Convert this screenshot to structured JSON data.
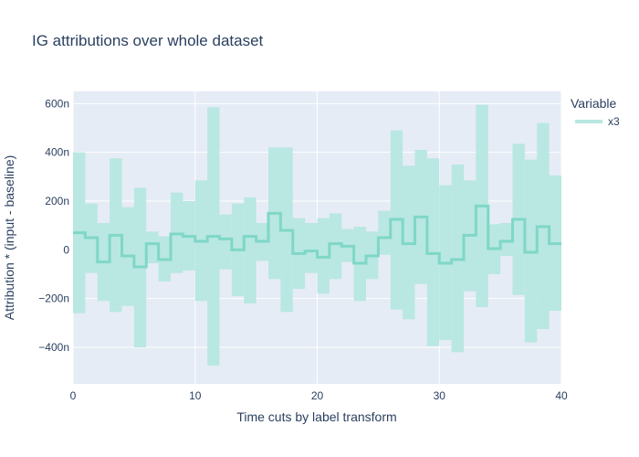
{
  "chart_data": {
    "type": "line",
    "title": "IG attributions over whole dataset",
    "xlabel": "Time cuts by label transform",
    "ylabel": "Attribution * (input - baseline)",
    "xlim": [
      0,
      40
    ],
    "ylim": [
      -550,
      650
    ],
    "x_ticks": [
      {
        "value": 0,
        "label": "0"
      },
      {
        "value": 10,
        "label": "10"
      },
      {
        "value": 20,
        "label": "20"
      },
      {
        "value": 30,
        "label": "30"
      },
      {
        "value": 40,
        "label": "40"
      }
    ],
    "y_ticks": [
      {
        "value": -400,
        "label": "−400n"
      },
      {
        "value": -200,
        "label": "−200n"
      },
      {
        "value": 0,
        "label": "0"
      },
      {
        "value": 200,
        "label": "200n"
      },
      {
        "value": 400,
        "label": "400n"
      },
      {
        "value": 600,
        "label": "600n"
      }
    ],
    "y_unit_note": "values in nano units (n)",
    "legend": {
      "title": "Variable",
      "placement": "top-right",
      "entries": [
        "x3"
      ]
    },
    "grid": true,
    "series": [
      {
        "name": "x3",
        "color": "#2ec4a6",
        "step": "hv",
        "x": [
          0,
          1,
          2,
          3,
          4,
          5,
          6,
          7,
          8,
          9,
          10,
          11,
          12,
          13,
          14,
          15,
          16,
          17,
          18,
          19,
          20,
          21,
          22,
          23,
          24,
          25,
          26,
          27,
          28,
          29,
          30,
          31,
          32,
          33,
          34,
          35,
          36,
          37,
          38,
          39
        ],
        "mean": [
          70,
          50,
          -50,
          60,
          -25,
          -70,
          25,
          -40,
          65,
          55,
          35,
          55,
          45,
          0,
          55,
          35,
          150,
          80,
          -15,
          -5,
          -30,
          25,
          15,
          -55,
          -25,
          50,
          125,
          25,
          135,
          -15,
          -55,
          -40,
          60,
          180,
          5,
          35,
          125,
          -10,
          95,
          25
        ],
        "upper": [
          400,
          190,
          110,
          375,
          175,
          255,
          75,
          55,
          235,
          200,
          285,
          585,
          145,
          190,
          215,
          110,
          420,
          420,
          130,
          110,
          130,
          150,
          85,
          95,
          75,
          160,
          490,
          345,
          410,
          375,
          265,
          350,
          285,
          595,
          105,
          110,
          435,
          370,
          520,
          305
        ],
        "lower": [
          -260,
          -95,
          -210,
          -255,
          -230,
          -400,
          -55,
          -130,
          -95,
          -85,
          -210,
          -475,
          -80,
          -190,
          -220,
          -45,
          -120,
          -255,
          -160,
          -95,
          -180,
          -120,
          -50,
          -210,
          -120,
          -20,
          -245,
          -285,
          -140,
          -395,
          -370,
          -420,
          -170,
          -235,
          -100,
          -25,
          -185,
          -380,
          -325,
          -250
        ]
      }
    ]
  }
}
